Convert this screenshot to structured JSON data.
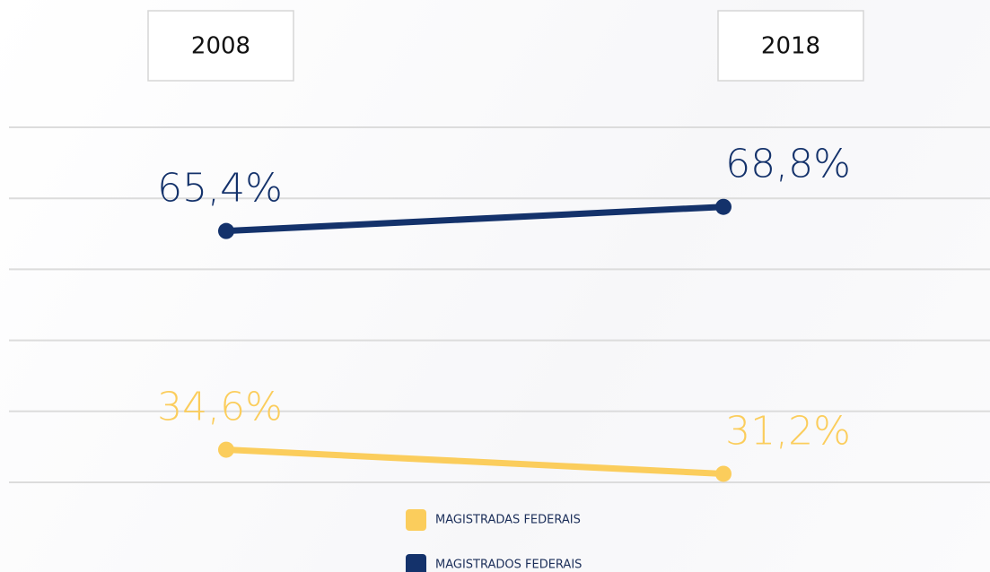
{
  "chart_data": {
    "type": "line",
    "categories": [
      "2008",
      "2018"
    ],
    "series": [
      {
        "name": "MAGISTRADAS FEDERAIS",
        "color": "#fbcd5c",
        "values": [
          34.6,
          31.2
        ],
        "value_labels": [
          "34,6%",
          "31,2%"
        ]
      },
      {
        "name": "MAGISTRADOS FEDERAIS",
        "color": "#14326b",
        "values": [
          65.4,
          68.8
        ],
        "value_labels": [
          "65,4%",
          "68,8%"
        ]
      }
    ],
    "ylim": [
      30,
      80
    ],
    "yticks": [
      30,
      40,
      50,
      60,
      70,
      80
    ],
    "grid": true
  }
}
